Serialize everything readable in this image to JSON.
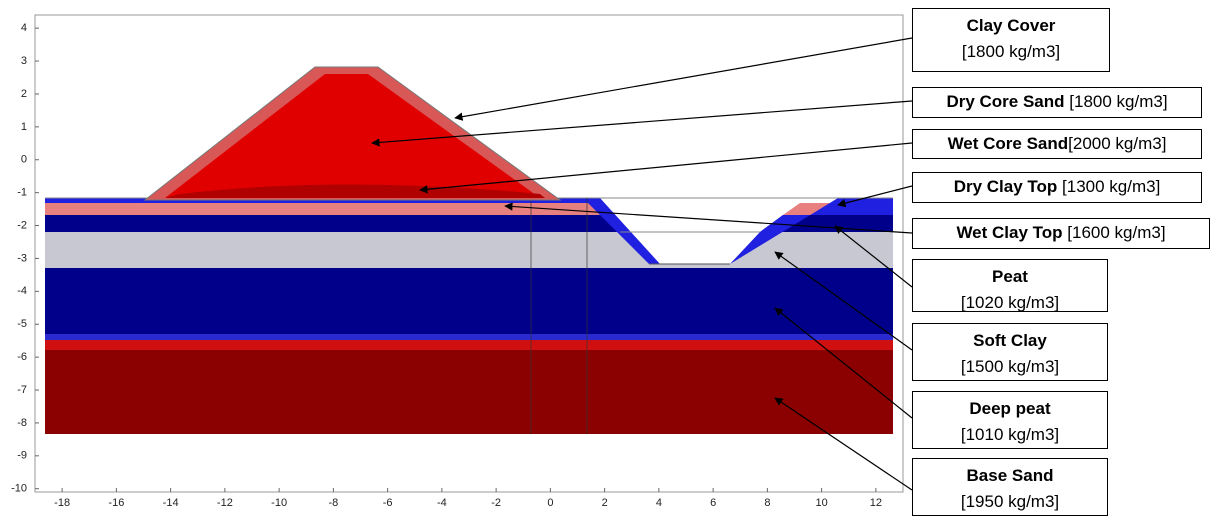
{
  "axes": {
    "xlim": [
      -19,
      13
    ],
    "ylim": [
      -10.1,
      4.4
    ],
    "xticks": [
      -18,
      -16,
      -14,
      -12,
      -10,
      -8,
      -6,
      -4,
      -2,
      0,
      2,
      4,
      6,
      8,
      10,
      12
    ],
    "yticks": [
      4,
      3,
      2,
      1,
      0,
      -1,
      -2,
      -3,
      -4,
      -5,
      -6,
      -7,
      -8,
      -9,
      -10
    ]
  },
  "labels": [
    {
      "name": "Clay Cover",
      "density": "[1800 kg/m3]"
    },
    {
      "name": "Dry Core Sand",
      "density": "[1800 kg/m3]"
    },
    {
      "name": "Wet Core Sand",
      "density": "[2000 kg/m3]"
    },
    {
      "name": "Dry Clay Top",
      "density": "[1300 kg/m3]"
    },
    {
      "name": "Wet Clay Top",
      "density": "[1600 kg/m3]"
    },
    {
      "name": "Peat",
      "density": "[1020 kg/m3]"
    },
    {
      "name": "Soft Clay",
      "density": "[1500 kg/m3]"
    },
    {
      "name": "Deep peat",
      "density": "[1010 kg/m3]"
    },
    {
      "name": "Base Sand",
      "density": "[1950 kg/m3]"
    }
  ]
}
